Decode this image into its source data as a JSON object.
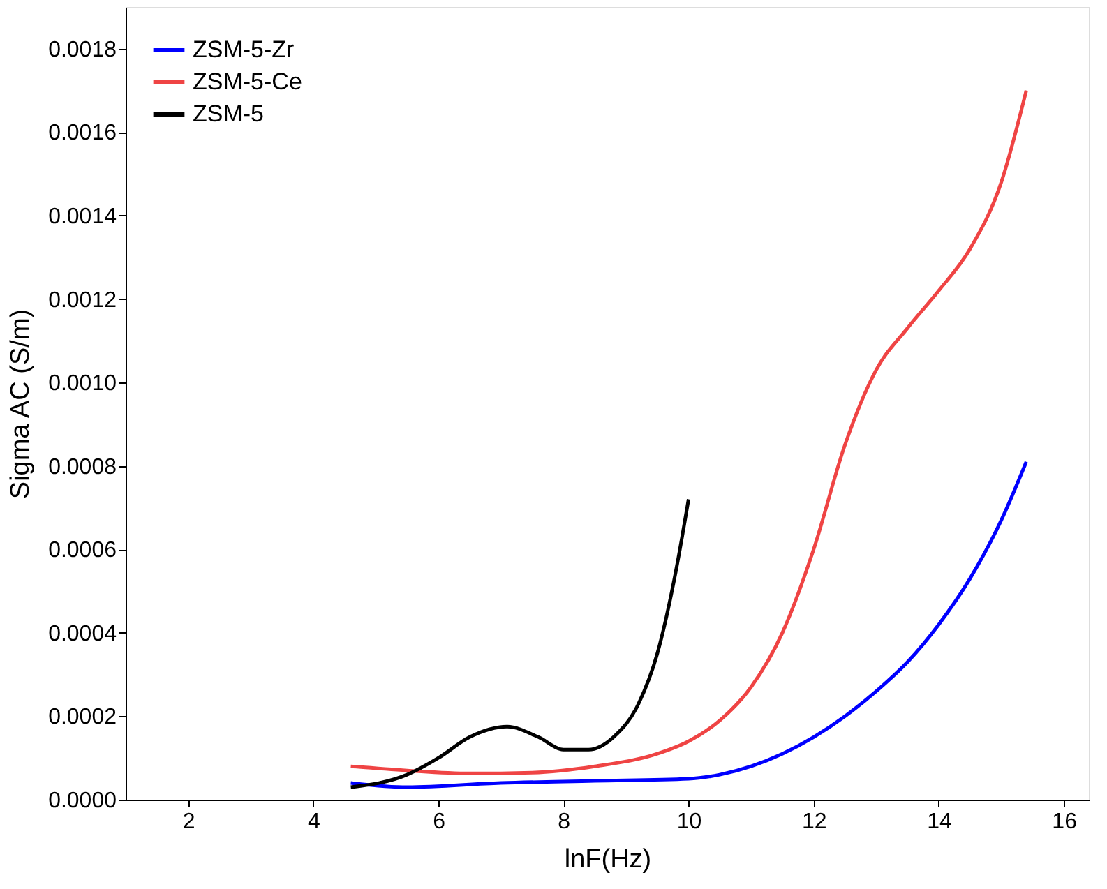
{
  "chart_data": {
    "type": "line",
    "xlabel": "lnF(Hz)",
    "ylabel": "Sigma AC (S/m)",
    "xlim": [
      1,
      16.4
    ],
    "xticks": [
      2,
      4,
      6,
      8,
      10,
      12,
      14,
      16
    ],
    "ylim": [
      0,
      0.0019
    ],
    "yticks": [
      {
        "value": 0,
        "label": "0.0000"
      },
      {
        "value": 0.0002,
        "label": "0.0002"
      },
      {
        "value": 0.0004,
        "label": "0.0004"
      },
      {
        "value": 0.0006,
        "label": "0.0006"
      },
      {
        "value": 0.0008,
        "label": "0.0008"
      },
      {
        "value": 0.001,
        "label": "0.0010"
      },
      {
        "value": 0.0012,
        "label": "0.0012"
      },
      {
        "value": 0.0014,
        "label": "0.0014"
      },
      {
        "value": 0.0016,
        "label": "0.0016"
      },
      {
        "value": 0.0018,
        "label": "0.0018"
      }
    ],
    "grid": false,
    "legend": "top left",
    "line_style": "solid",
    "marker": "none",
    "series": [
      {
        "name": "ZSM-5-Zr",
        "color": "#0000ff",
        "x": [
          4.6,
          5.5,
          7,
          8.5,
          10,
          10.5,
          11,
          11.5,
          12,
          12.5,
          13,
          13.5,
          14,
          14.5,
          15,
          15.4
        ],
        "values": [
          4e-05,
          3e-05,
          4e-05,
          4.5e-05,
          5e-05,
          6e-05,
          8e-05,
          0.00011,
          0.00015,
          0.0002,
          0.00026,
          0.00033,
          0.00042,
          0.00053,
          0.00067,
          0.00081
        ]
      },
      {
        "name": "ZSM-5-Ce",
        "color": "#ef4444",
        "x": [
          4.6,
          5.5,
          6.5,
          7.5,
          8.5,
          9.5,
          10,
          10.5,
          11,
          11.5,
          12,
          12.5,
          13,
          13.5,
          14,
          14.5,
          15,
          15.4
        ],
        "values": [
          8e-05,
          7e-05,
          6.3e-05,
          6.5e-05,
          8e-05,
          0.00011,
          0.00014,
          0.00019,
          0.00027,
          0.0004,
          0.0006,
          0.00085,
          0.00103,
          0.00113,
          0.00122,
          0.00132,
          0.00148,
          0.0017
        ]
      },
      {
        "name": "ZSM-5",
        "color": "#000000",
        "x": [
          4.6,
          5.5,
          6,
          6.5,
          7.1,
          7.6,
          8,
          8.4,
          8.8,
          9.2,
          9.5,
          9.8,
          10
        ],
        "values": [
          3e-05,
          6e-05,
          0.0001,
          0.00015,
          0.000175,
          0.00015,
          0.00012,
          0.00012,
          0.00015,
          0.00023,
          0.00035,
          0.00055,
          0.00072
        ]
      }
    ]
  }
}
